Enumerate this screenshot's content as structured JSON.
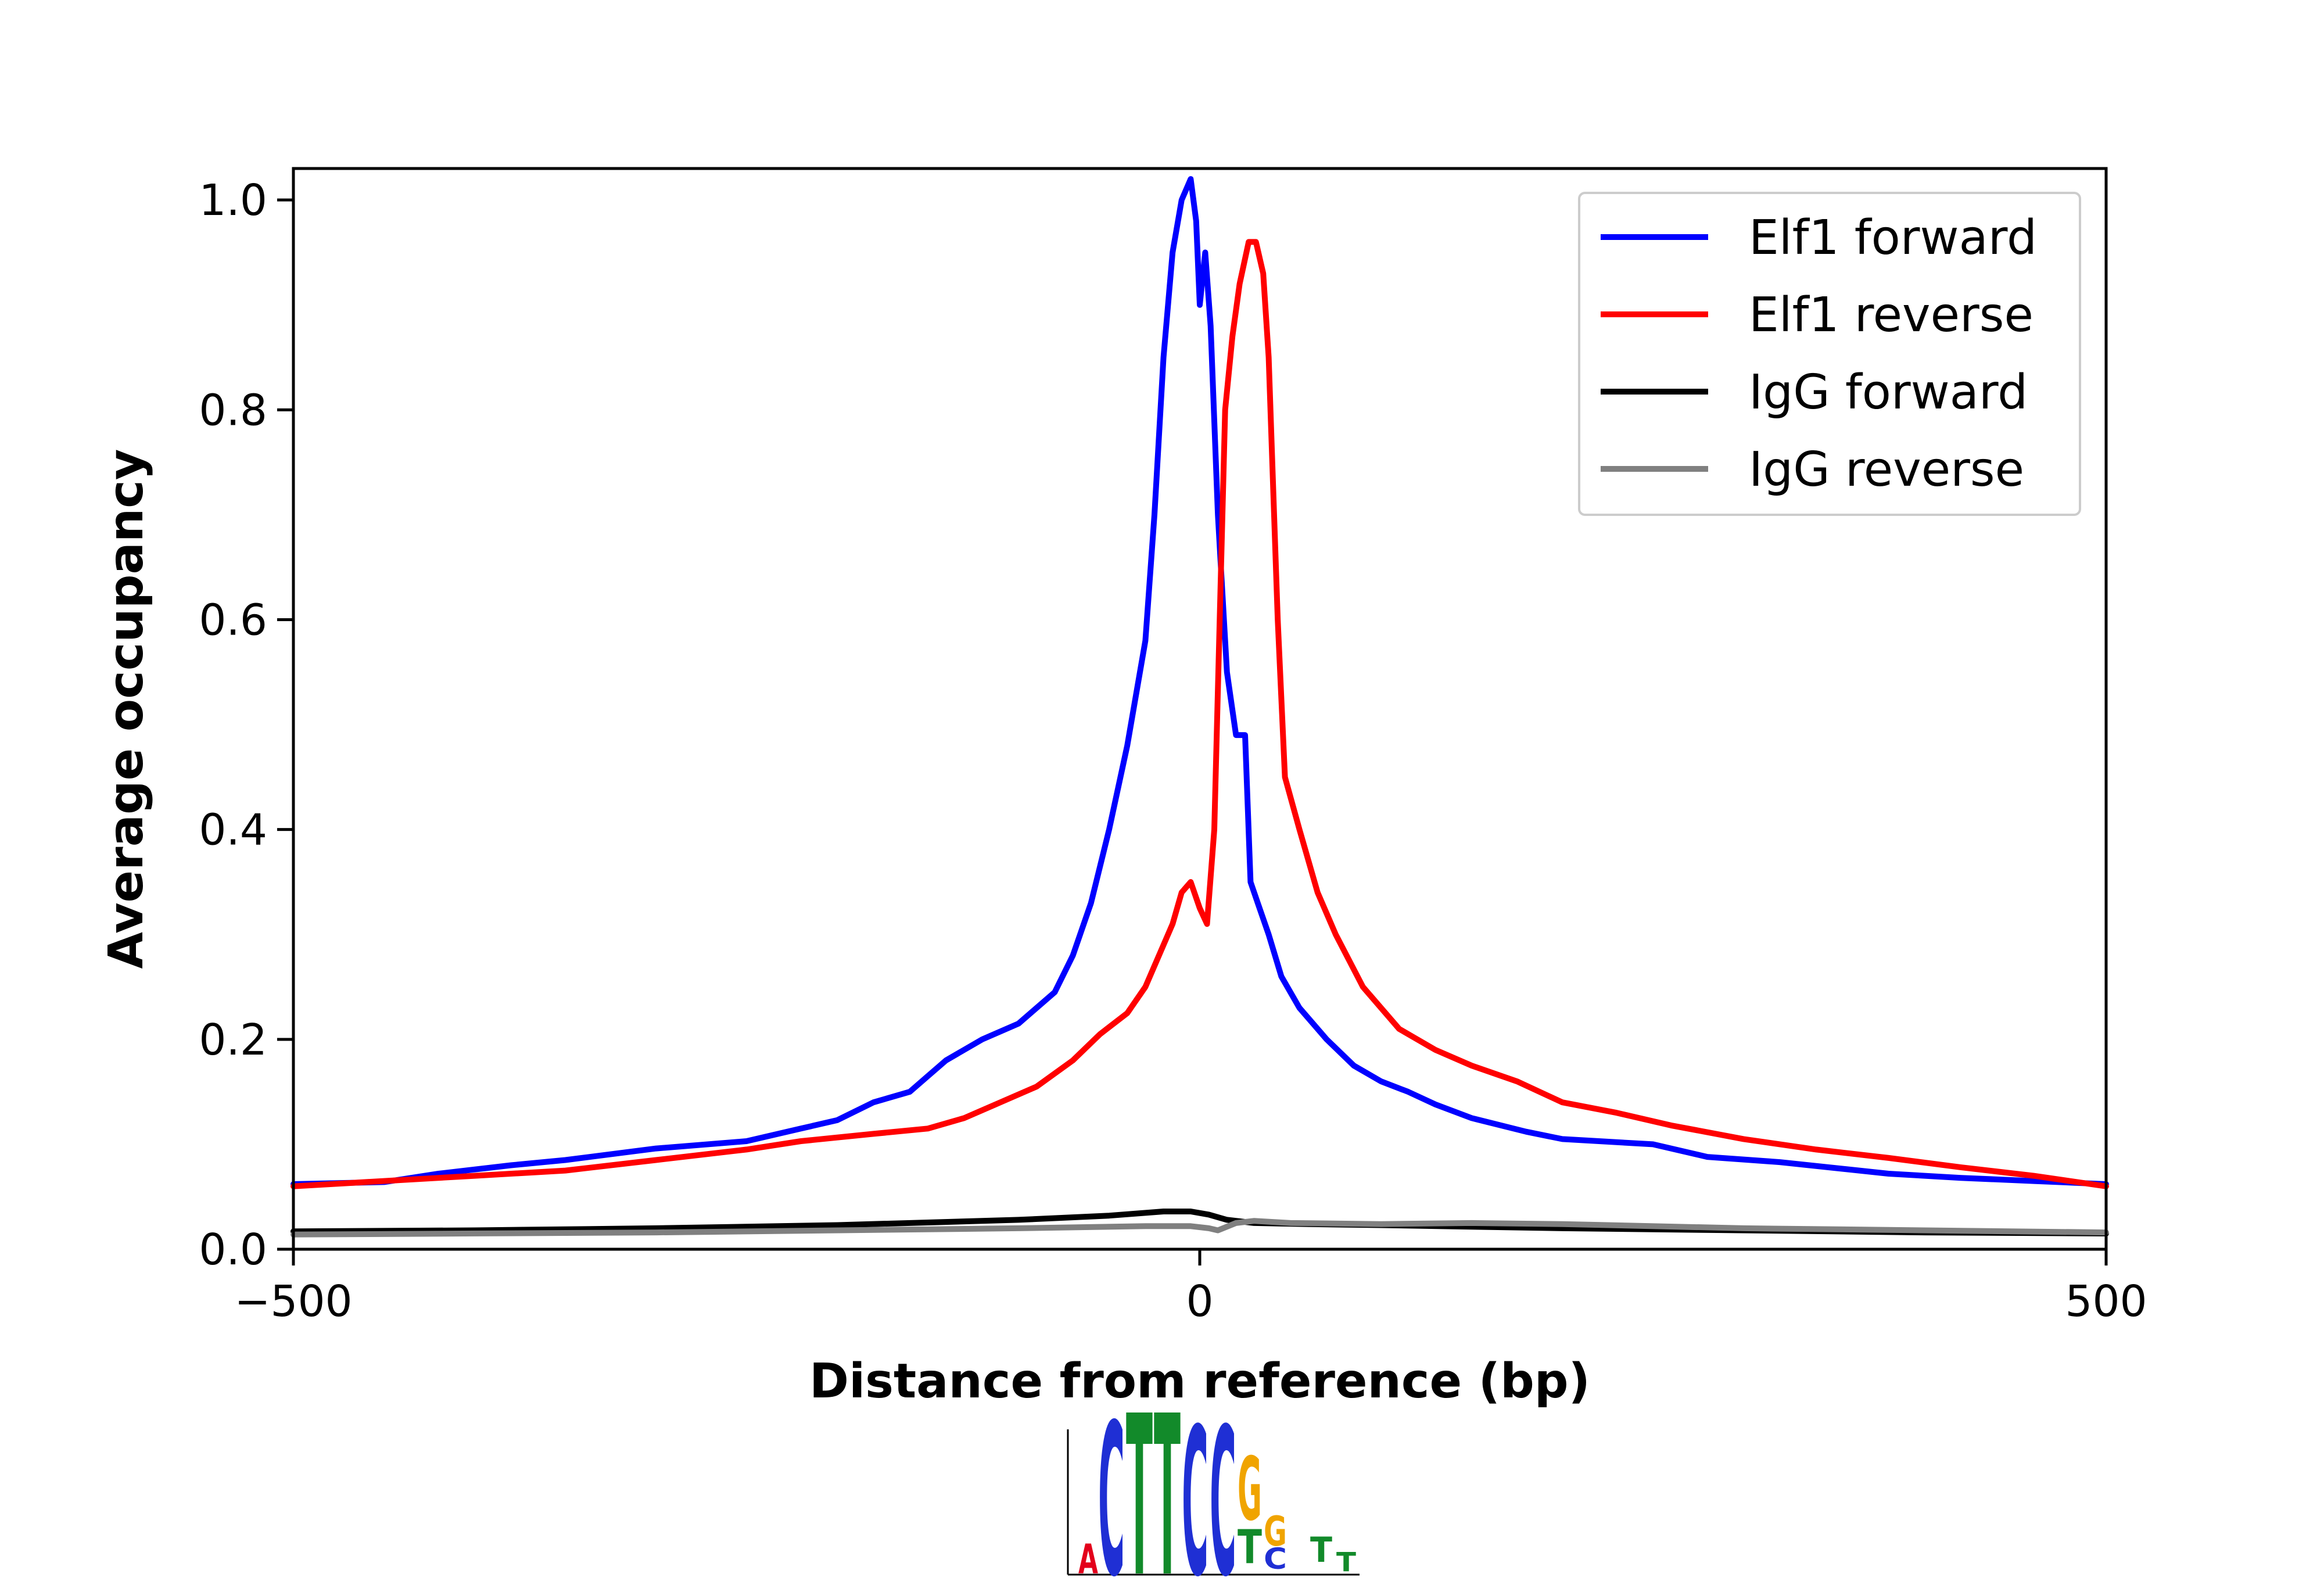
{
  "chart_data": {
    "type": "line",
    "xlabel": "Distance from reference (bp)",
    "ylabel": "Average occupancy",
    "xlim": [
      -500,
      500
    ],
    "ylim": [
      0,
      1.03
    ],
    "xticks": [
      -500,
      0,
      500
    ],
    "xtick_labels": [
      "−500",
      "0",
      "500"
    ],
    "yticks": [
      0.0,
      0.2,
      0.4,
      0.6,
      0.8,
      1.0
    ],
    "ytick_labels": [
      "0.0",
      "0.2",
      "0.4",
      "0.6",
      "0.8",
      "1.0"
    ],
    "grid": false,
    "legend_position": "top-right",
    "series": [
      {
        "name": "Elf1 forward",
        "color": "#0000ff",
        "points": [
          [
            -500,
            0.062
          ],
          [
            -450,
            0.064
          ],
          [
            -420,
            0.072
          ],
          [
            -380,
            0.08
          ],
          [
            -350,
            0.085
          ],
          [
            -300,
            0.096
          ],
          [
            -250,
            0.103
          ],
          [
            -220,
            0.115
          ],
          [
            -200,
            0.123
          ],
          [
            -180,
            0.14
          ],
          [
            -160,
            0.15
          ],
          [
            -150,
            0.165
          ],
          [
            -140,
            0.18
          ],
          [
            -120,
            0.2
          ],
          [
            -100,
            0.215
          ],
          [
            -80,
            0.245
          ],
          [
            -70,
            0.28
          ],
          [
            -60,
            0.33
          ],
          [
            -50,
            0.4
          ],
          [
            -40,
            0.48
          ],
          [
            -30,
            0.58
          ],
          [
            -25,
            0.7
          ],
          [
            -20,
            0.85
          ],
          [
            -15,
            0.95
          ],
          [
            -10,
            1.0
          ],
          [
            -5,
            1.02
          ],
          [
            -2,
            0.98
          ],
          [
            0,
            0.9
          ],
          [
            3,
            0.95
          ],
          [
            6,
            0.88
          ],
          [
            10,
            0.7
          ],
          [
            15,
            0.55
          ],
          [
            20,
            0.49
          ],
          [
            25,
            0.49
          ],
          [
            28,
            0.35
          ],
          [
            32,
            0.33
          ],
          [
            38,
            0.3
          ],
          [
            45,
            0.26
          ],
          [
            55,
            0.23
          ],
          [
            70,
            0.2
          ],
          [
            85,
            0.175
          ],
          [
            100,
            0.16
          ],
          [
            115,
            0.15
          ],
          [
            130,
            0.138
          ],
          [
            150,
            0.125
          ],
          [
            180,
            0.112
          ],
          [
            200,
            0.105
          ],
          [
            250,
            0.1
          ],
          [
            280,
            0.088
          ],
          [
            320,
            0.083
          ],
          [
            380,
            0.072
          ],
          [
            420,
            0.068
          ],
          [
            460,
            0.065
          ],
          [
            500,
            0.062
          ]
        ]
      },
      {
        "name": "Elf1 reverse",
        "color": "#ff0000",
        "points": [
          [
            -500,
            0.06
          ],
          [
            -450,
            0.065
          ],
          [
            -400,
            0.07
          ],
          [
            -350,
            0.075
          ],
          [
            -300,
            0.085
          ],
          [
            -250,
            0.095
          ],
          [
            -220,
            0.103
          ],
          [
            -180,
            0.11
          ],
          [
            -150,
            0.115
          ],
          [
            -130,
            0.125
          ],
          [
            -110,
            0.14
          ],
          [
            -90,
            0.155
          ],
          [
            -70,
            0.18
          ],
          [
            -55,
            0.205
          ],
          [
            -40,
            0.225
          ],
          [
            -30,
            0.25
          ],
          [
            -20,
            0.29
          ],
          [
            -15,
            0.31
          ],
          [
            -10,
            0.34
          ],
          [
            -5,
            0.35
          ],
          [
            0,
            0.325
          ],
          [
            4,
            0.31
          ],
          [
            8,
            0.4
          ],
          [
            11,
            0.6
          ],
          [
            14,
            0.8
          ],
          [
            18,
            0.87
          ],
          [
            22,
            0.92
          ],
          [
            27,
            0.96
          ],
          [
            31,
            0.96
          ],
          [
            35,
            0.93
          ],
          [
            38,
            0.85
          ],
          [
            40,
            0.75
          ],
          [
            43,
            0.6
          ],
          [
            47,
            0.45
          ],
          [
            55,
            0.4
          ],
          [
            65,
            0.34
          ],
          [
            75,
            0.3
          ],
          [
            90,
            0.25
          ],
          [
            110,
            0.21
          ],
          [
            130,
            0.19
          ],
          [
            150,
            0.175
          ],
          [
            175,
            0.16
          ],
          [
            200,
            0.14
          ],
          [
            230,
            0.13
          ],
          [
            260,
            0.118
          ],
          [
            300,
            0.105
          ],
          [
            340,
            0.095
          ],
          [
            380,
            0.087
          ],
          [
            420,
            0.078
          ],
          [
            460,
            0.07
          ],
          [
            500,
            0.06
          ]
        ]
      },
      {
        "name": "IgG forward",
        "color": "#000000",
        "points": [
          [
            -500,
            0.017
          ],
          [
            -400,
            0.018
          ],
          [
            -300,
            0.02
          ],
          [
            -200,
            0.023
          ],
          [
            -100,
            0.028
          ],
          [
            -50,
            0.032
          ],
          [
            -20,
            0.036
          ],
          [
            -5,
            0.036
          ],
          [
            5,
            0.033
          ],
          [
            15,
            0.028
          ],
          [
            30,
            0.025
          ],
          [
            60,
            0.024
          ],
          [
            100,
            0.023
          ],
          [
            200,
            0.02
          ],
          [
            300,
            0.018
          ],
          [
            400,
            0.016
          ],
          [
            500,
            0.015
          ]
        ]
      },
      {
        "name": "IgG reverse",
        "color": "#808080",
        "points": [
          [
            -500,
            0.014
          ],
          [
            -400,
            0.015
          ],
          [
            -300,
            0.016
          ],
          [
            -200,
            0.018
          ],
          [
            -100,
            0.02
          ],
          [
            -30,
            0.022
          ],
          [
            -5,
            0.022
          ],
          [
            5,
            0.02
          ],
          [
            10,
            0.018
          ],
          [
            20,
            0.025
          ],
          [
            30,
            0.027
          ],
          [
            50,
            0.025
          ],
          [
            100,
            0.024
          ],
          [
            150,
            0.025
          ],
          [
            200,
            0.024
          ],
          [
            300,
            0.02
          ],
          [
            400,
            0.018
          ],
          [
            500,
            0.016
          ]
        ]
      }
    ]
  }
}
